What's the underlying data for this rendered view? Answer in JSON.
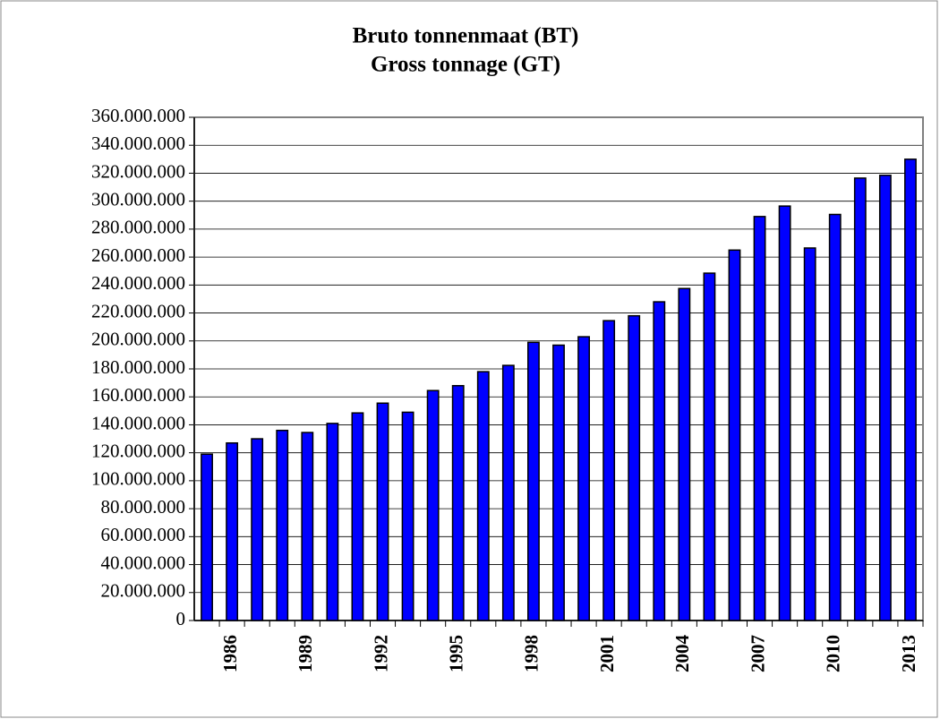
{
  "chart_data": {
    "type": "bar",
    "title": "Bruto tonnenmaat (BT)",
    "subtitle": "Gross tonnage (GT)",
    "categories": [
      null,
      "1986",
      null,
      null,
      "1989",
      null,
      null,
      "1992",
      null,
      null,
      "1995",
      null,
      null,
      "1998",
      null,
      null,
      "2001",
      null,
      null,
      "2004",
      null,
      null,
      "2007",
      null,
      null,
      "2010",
      null,
      null,
      "2013"
    ],
    "values": [
      119000000,
      127000000,
      130000000,
      136000000,
      134500000,
      141000000,
      148500000,
      155500000,
      149000000,
      164500000,
      168000000,
      178000000,
      182500000,
      199000000,
      197000000,
      203000000,
      214500000,
      218000000,
      228000000,
      237500000,
      248500000,
      265000000,
      289000000,
      296500000,
      266500000,
      290500000,
      316500000,
      318500000,
      330000000
    ],
    "color": "#0000ff",
    "ylim": [
      0,
      360000000
    ],
    "yticks": [
      0,
      {
        "value": 20000000,
        "label": "20.000.000"
      },
      {
        "value": 40000000,
        "label": "40.000.000"
      },
      {
        "value": 60000000,
        "label": "60.000.000"
      },
      {
        "value": 80000000,
        "label": "80.000.000"
      },
      {
        "value": 100000000,
        "label": "100.000.000"
      },
      {
        "value": 120000000,
        "label": "120.000.000"
      },
      {
        "value": 140000000,
        "label": "140.000.000"
      },
      {
        "value": 160000000,
        "label": "160.000.000"
      },
      {
        "value": 180000000,
        "label": "180.000.000"
      },
      {
        "value": 200000000,
        "label": "200.000.000"
      },
      {
        "value": 220000000,
        "label": "220.000.000"
      },
      {
        "value": 240000000,
        "label": "240.000.000"
      },
      {
        "value": 260000000,
        "label": "260.000.000"
      },
      {
        "value": 280000000,
        "label": "280.000.000"
      },
      {
        "value": 300000000,
        "label": "300.000.000"
      },
      {
        "value": 320000000,
        "label": "320.000.000"
      },
      {
        "value": 340000000,
        "label": "340.000.000"
      },
      {
        "value": 360000000,
        "label": "360.000.000"
      }
    ],
    "grid": true
  }
}
